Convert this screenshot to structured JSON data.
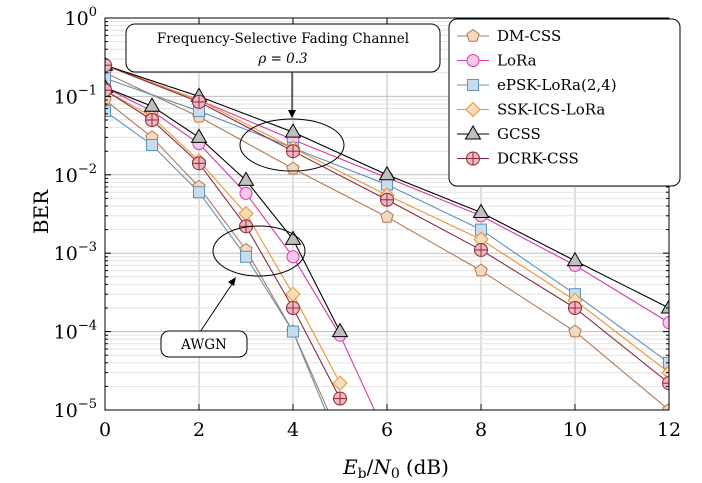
{
  "chart_data": {
    "type": "line",
    "xlabel": "E_b/N_0 (dB)",
    "xlabel_parts": {
      "E": "E",
      "b": "b",
      "slash": "/",
      "N": "N",
      "zero": "0",
      "unit": "(dB)"
    },
    "ylabel": "BER",
    "x_scale": "linear",
    "y_scale": "log",
    "xlim": [
      0,
      12
    ],
    "ylim": [
      1e-05,
      1
    ],
    "xticks": [
      0,
      2,
      4,
      6,
      8,
      10,
      12
    ],
    "xtick_labels": [
      "0",
      "2",
      "4",
      "6",
      "8",
      "10",
      "12"
    ],
    "ytick_exponents": [
      "0",
      "−1",
      "−2",
      "−3",
      "−4",
      "−5"
    ],
    "ytick_base": "10",
    "grid": true,
    "legend_position": "top-right",
    "series": [
      {
        "name": "DM-CSS",
        "marker": "pentagon",
        "color": "#b07a55",
        "fill": "#f3d9c2",
        "fading": {
          "x": [
            0,
            2,
            4,
            6,
            8,
            10,
            12
          ],
          "y": [
            0.2,
            0.055,
            0.012,
            0.0029,
            0.0006,
            0.0001,
            1e-05
          ]
        },
        "awgn": {
          "x": [
            0,
            1,
            2,
            3,
            4,
            5
          ],
          "y": [
            0.09,
            0.03,
            0.007,
            0.0011,
            0.0001,
            4.5e-06
          ]
        }
      },
      {
        "name": "LoRa",
        "marker": "circle",
        "color": "#d63aa8",
        "fill": "#f8c8ea",
        "fading": {
          "x": [
            0,
            2,
            4,
            6,
            8,
            10,
            12
          ],
          "y": [
            0.25,
            0.09,
            0.028,
            0.0092,
            0.003,
            0.0007,
            0.00013
          ]
        },
        "awgn": {
          "x": [
            0,
            1,
            2,
            3,
            4,
            5,
            6
          ],
          "y": [
            0.13,
            0.065,
            0.025,
            0.0058,
            0.0009,
            9e-05,
            4.5e-06
          ]
        }
      },
      {
        "name": "ePSK-LoRa(2,4)",
        "marker": "square",
        "color": "#5f93b8",
        "fill": "#c9dcee",
        "fading": {
          "x": [
            0,
            2,
            4,
            6,
            8,
            10,
            12
          ],
          "y": [
            0.17,
            0.065,
            0.022,
            0.0075,
            0.002,
            0.0003,
            4e-05
          ]
        },
        "awgn": {
          "x": [
            0,
            1,
            2,
            3,
            4,
            5
          ],
          "y": [
            0.065,
            0.024,
            0.006,
            0.0009,
            0.0001,
            3.5e-06
          ]
        }
      },
      {
        "name": "SSK-ICS-LoRa",
        "marker": "diamond",
        "color": "#e8953a",
        "fill": "#fbdcb8",
        "fading": {
          "x": [
            0,
            2,
            4,
            6,
            8,
            10,
            12
          ],
          "y": [
            0.25,
            0.09,
            0.022,
            0.0055,
            0.0015,
            0.00025,
            3e-05
          ]
        },
        "awgn": {
          "x": [
            0,
            1,
            2,
            3,
            4,
            5
          ],
          "y": [
            0.12,
            0.055,
            0.015,
            0.0032,
            0.0003,
            2.2e-05
          ]
        }
      },
      {
        "name": "GCSS",
        "marker": "triangle",
        "color": "#000000",
        "fill": "#bfbfbf",
        "fading": {
          "x": [
            0,
            2,
            4,
            6,
            8,
            10,
            12
          ],
          "y": [
            0.25,
            0.1,
            0.035,
            0.01,
            0.0033,
            0.0008,
            0.0002
          ]
        },
        "awgn": {
          "x": [
            0,
            1,
            2,
            3,
            4,
            5
          ],
          "y": [
            0.13,
            0.075,
            0.03,
            0.0085,
            0.0015,
            0.0001
          ]
        }
      },
      {
        "name": "DCRK-CSS",
        "marker": "circle-plus",
        "color": "#8b2a3c",
        "fill": "#f0b8c2",
        "fading": {
          "x": [
            0,
            2,
            4,
            6,
            8,
            10,
            12
          ],
          "y": [
            0.25,
            0.085,
            0.02,
            0.0048,
            0.0011,
            0.0002,
            2.2e-05
          ]
        },
        "awgn": {
          "x": [
            0,
            1,
            2,
            3,
            4,
            5
          ],
          "y": [
            0.12,
            0.05,
            0.014,
            0.0022,
            0.0002,
            1.4e-05
          ]
        }
      }
    ],
    "annotations": [
      {
        "text": "Frequency-Selective Fading Channel",
        "text2": "ρ = 0.3",
        "target": "fading"
      },
      {
        "text": "AWGN",
        "target": "awgn"
      }
    ]
  }
}
